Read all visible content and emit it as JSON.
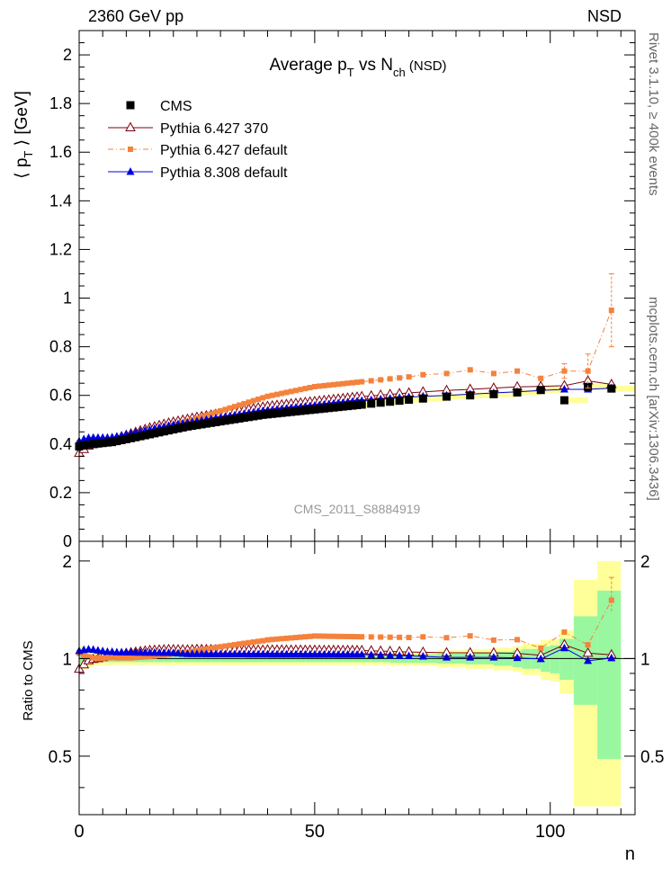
{
  "header": {
    "left": "2360 GeV pp",
    "right": "NSD"
  },
  "side_text": {
    "rivet": "Rivet 3.1.10, ≥ 400k events",
    "mcplots": "mcplots.cern.ch [arXiv:1306.3436]"
  },
  "colors": {
    "cms": "#000000",
    "pythia6_370": "#7a0010",
    "pythia6_default": "#f4823c",
    "pythia8_default": "#0000dd",
    "band_inner": "#99f7a0",
    "band_outer": "#ffff99"
  },
  "chart_data": [
    {
      "type": "scatter",
      "title": "Average p_T vs N_ch (NSD)",
      "title_parts": {
        "main": "Average p",
        "sub1": "T",
        "mid": " vs N",
        "sub2": "ch",
        "tail": " (NSD)"
      },
      "ylabel": "⟨ p_T ⟩ [GeV]",
      "ylabel_parts": {
        "open": "⟨ p",
        "sub": "T",
        "close": " ⟩ [GeV]"
      },
      "xlim": [
        0,
        118
      ],
      "ylim": [
        0,
        2.1
      ],
      "y_ticks": [
        0,
        0.2,
        0.4,
        0.6,
        0.8,
        1,
        1.2,
        1.4,
        1.6,
        1.8,
        2
      ],
      "y_tick_labels": [
        "0",
        "0.2",
        "0.4",
        "0.6",
        "0.8",
        "1",
        "1.2",
        "1.4",
        "1.6",
        "1.8",
        "2"
      ],
      "watermark": "CMS_2011_S8884919",
      "legend_position": "top-left",
      "series": [
        {
          "name": "CMS",
          "marker": "square",
          "x": [
            0,
            1,
            2,
            3,
            4,
            5,
            6,
            7,
            8,
            9,
            10,
            11,
            12,
            13,
            14,
            15,
            16,
            17,
            18,
            19,
            20,
            21,
            22,
            23,
            24,
            25,
            26,
            27,
            28,
            29,
            30,
            31,
            32,
            33,
            34,
            35,
            36,
            37,
            38,
            39,
            40,
            41,
            42,
            43,
            44,
            45,
            46,
            47,
            48,
            49,
            50,
            51,
            52,
            53,
            54,
            55,
            56,
            57,
            58,
            59,
            60,
            62,
            64,
            66,
            68,
            70,
            73,
            78,
            83,
            88,
            93,
            98,
            103,
            108,
            113
          ],
          "y": [
            0.39,
            0.395,
            0.398,
            0.4,
            0.402,
            0.404,
            0.406,
            0.408,
            0.412,
            0.416,
            0.42,
            0.424,
            0.428,
            0.432,
            0.436,
            0.44,
            0.444,
            0.448,
            0.452,
            0.456,
            0.46,
            0.464,
            0.468,
            0.472,
            0.475,
            0.478,
            0.481,
            0.484,
            0.487,
            0.49,
            0.493,
            0.496,
            0.499,
            0.502,
            0.505,
            0.508,
            0.511,
            0.514,
            0.517,
            0.52,
            0.522,
            0.524,
            0.526,
            0.528,
            0.53,
            0.532,
            0.534,
            0.536,
            0.538,
            0.54,
            0.542,
            0.544,
            0.546,
            0.548,
            0.55,
            0.552,
            0.554,
            0.556,
            0.558,
            0.56,
            0.562,
            0.566,
            0.57,
            0.574,
            0.578,
            0.582,
            0.587,
            0.595,
            0.6,
            0.605,
            0.612,
            0.622,
            0.58,
            0.635,
            0.628
          ]
        },
        {
          "name": "Pythia 6.427 370",
          "marker": "triangle-open",
          "x": [
            0,
            1,
            2,
            3,
            4,
            5,
            6,
            7,
            8,
            9,
            10,
            11,
            12,
            13,
            14,
            15,
            16,
            17,
            18,
            19,
            20,
            21,
            22,
            23,
            24,
            25,
            26,
            27,
            28,
            29,
            30,
            31,
            32,
            33,
            34,
            35,
            36,
            37,
            38,
            39,
            40,
            41,
            42,
            43,
            44,
            45,
            46,
            47,
            48,
            49,
            50,
            51,
            52,
            53,
            54,
            55,
            56,
            57,
            58,
            59,
            60,
            62,
            64,
            66,
            68,
            70,
            73,
            78,
            83,
            88,
            93,
            98,
            103,
            108,
            113
          ],
          "y": [
            0.362,
            0.378,
            0.392,
            0.398,
            0.402,
            0.407,
            0.412,
            0.418,
            0.424,
            0.43,
            0.436,
            0.442,
            0.448,
            0.454,
            0.46,
            0.466,
            0.471,
            0.476,
            0.481,
            0.486,
            0.49,
            0.494,
            0.498,
            0.502,
            0.506,
            0.51,
            0.513,
            0.516,
            0.519,
            0.522,
            0.525,
            0.528,
            0.531,
            0.534,
            0.537,
            0.54,
            0.543,
            0.546,
            0.549,
            0.552,
            0.555,
            0.557,
            0.559,
            0.561,
            0.563,
            0.565,
            0.567,
            0.569,
            0.571,
            0.573,
            0.575,
            0.577,
            0.579,
            0.581,
            0.583,
            0.585,
            0.587,
            0.589,
            0.591,
            0.593,
            0.595,
            0.598,
            0.601,
            0.604,
            0.607,
            0.61,
            0.614,
            0.62,
            0.625,
            0.63,
            0.635,
            0.637,
            0.64,
            0.66,
            0.645
          ]
        },
        {
          "name": "Pythia 6.427 default",
          "marker": "square-small",
          "x": [
            0,
            1,
            2,
            3,
            4,
            5,
            6,
            7,
            8,
            9,
            10,
            11,
            12,
            13,
            14,
            15,
            16,
            17,
            18,
            19,
            20,
            21,
            22,
            23,
            24,
            25,
            26,
            27,
            28,
            29,
            30,
            31,
            32,
            33,
            34,
            35,
            36,
            37,
            38,
            39,
            40,
            41,
            42,
            43,
            44,
            45,
            46,
            47,
            48,
            49,
            50,
            51,
            52,
            53,
            54,
            55,
            56,
            57,
            58,
            59,
            60,
            62,
            64,
            66,
            68,
            70,
            73,
            78,
            83,
            88,
            93,
            98,
            103,
            108,
            113
          ],
          "y": [
            0.405,
            0.405,
            0.403,
            0.402,
            0.403,
            0.405,
            0.408,
            0.411,
            0.414,
            0.418,
            0.422,
            0.426,
            0.431,
            0.436,
            0.441,
            0.446,
            0.452,
            0.458,
            0.464,
            0.47,
            0.476,
            0.482,
            0.488,
            0.494,
            0.5,
            0.506,
            0.512,
            0.518,
            0.524,
            0.53,
            0.536,
            0.542,
            0.548,
            0.554,
            0.56,
            0.566,
            0.572,
            0.578,
            0.584,
            0.59,
            0.596,
            0.6,
            0.604,
            0.608,
            0.612,
            0.616,
            0.62,
            0.624,
            0.628,
            0.632,
            0.636,
            0.638,
            0.64,
            0.642,
            0.644,
            0.646,
            0.648,
            0.65,
            0.652,
            0.654,
            0.656,
            0.66,
            0.664,
            0.668,
            0.672,
            0.676,
            0.685,
            0.69,
            0.705,
            0.69,
            0.7,
            0.67,
            0.7,
            0.7,
            0.95
          ]
        },
        {
          "name": "Pythia 8.308 default",
          "marker": "triangle-filled",
          "x": [
            0,
            1,
            2,
            3,
            4,
            5,
            6,
            7,
            8,
            9,
            10,
            11,
            12,
            13,
            14,
            15,
            16,
            17,
            18,
            19,
            20,
            21,
            22,
            23,
            24,
            25,
            26,
            27,
            28,
            29,
            30,
            31,
            32,
            33,
            34,
            35,
            36,
            37,
            38,
            39,
            40,
            41,
            42,
            43,
            44,
            45,
            46,
            47,
            48,
            49,
            50,
            51,
            52,
            53,
            54,
            55,
            56,
            57,
            58,
            59,
            60,
            62,
            64,
            66,
            68,
            70,
            73,
            78,
            83,
            88,
            93,
            98,
            103,
            108,
            113
          ],
          "y": [
            0.412,
            0.42,
            0.425,
            0.426,
            0.426,
            0.426,
            0.426,
            0.428,
            0.431,
            0.435,
            0.439,
            0.443,
            0.447,
            0.451,
            0.455,
            0.459,
            0.463,
            0.467,
            0.471,
            0.475,
            0.479,
            0.482,
            0.485,
            0.488,
            0.491,
            0.494,
            0.497,
            0.5,
            0.503,
            0.506,
            0.509,
            0.512,
            0.515,
            0.518,
            0.521,
            0.524,
            0.527,
            0.53,
            0.533,
            0.536,
            0.538,
            0.54,
            0.542,
            0.544,
            0.546,
            0.548,
            0.55,
            0.552,
            0.554,
            0.556,
            0.558,
            0.56,
            0.562,
            0.564,
            0.566,
            0.568,
            0.57,
            0.572,
            0.574,
            0.576,
            0.578,
            0.581,
            0.584,
            0.587,
            0.59,
            0.593,
            0.596,
            0.6,
            0.605,
            0.61,
            0.615,
            0.62,
            0.625,
            0.625,
            0.63
          ]
        }
      ]
    },
    {
      "type": "scatter",
      "ylabel": "Ratio to CMS",
      "xlabel": "n",
      "xlim": [
        0,
        118
      ],
      "ylim": [
        0.33,
        2.3
      ],
      "scale": "log",
      "x_ticks": [
        0,
        50,
        100
      ],
      "x_tick_labels": [
        "0",
        "50",
        "100"
      ],
      "y_ticks": [
        0.5,
        1,
        2
      ],
      "y_tick_labels": [
        "0.5",
        "1",
        "2"
      ],
      "bands": {
        "x_edges": [
          0,
          1,
          2,
          3,
          4,
          5,
          6,
          7,
          8,
          9,
          10,
          12,
          14,
          16,
          18,
          20,
          22,
          24,
          26,
          28,
          30,
          32,
          34,
          36,
          38,
          40,
          42,
          44,
          46,
          48,
          50,
          52,
          54,
          56,
          58,
          60,
          62,
          64,
          66,
          68,
          70,
          72,
          74,
          76,
          78,
          80,
          82,
          84,
          86,
          88,
          90,
          92,
          94,
          96,
          98,
          100,
          102,
          105,
          110,
          115
        ],
        "inner_lo": [
          0.95,
          0.96,
          0.97,
          0.975,
          0.975,
          0.975,
          0.975,
          0.975,
          0.975,
          0.975,
          0.975,
          0.975,
          0.975,
          0.975,
          0.975,
          0.975,
          0.975,
          0.975,
          0.975,
          0.975,
          0.975,
          0.975,
          0.975,
          0.975,
          0.975,
          0.975,
          0.975,
          0.975,
          0.975,
          0.975,
          0.975,
          0.975,
          0.975,
          0.975,
          0.975,
          0.975,
          0.975,
          0.975,
          0.97,
          0.97,
          0.97,
          0.97,
          0.97,
          0.965,
          0.965,
          0.965,
          0.96,
          0.96,
          0.96,
          0.95,
          0.95,
          0.94,
          0.93,
          0.93,
          0.91,
          0.9,
          0.86,
          0.72,
          0.49
        ],
        "inner_hi": [
          1.05,
          1.04,
          1.03,
          1.025,
          1.025,
          1.025,
          1.025,
          1.025,
          1.025,
          1.025,
          1.025,
          1.025,
          1.025,
          1.025,
          1.025,
          1.025,
          1.025,
          1.025,
          1.025,
          1.025,
          1.025,
          1.025,
          1.025,
          1.025,
          1.025,
          1.025,
          1.025,
          1.025,
          1.025,
          1.025,
          1.025,
          1.025,
          1.025,
          1.025,
          1.025,
          1.025,
          1.025,
          1.025,
          1.03,
          1.03,
          1.03,
          1.03,
          1.03,
          1.035,
          1.035,
          1.035,
          1.04,
          1.04,
          1.04,
          1.05,
          1.05,
          1.06,
          1.07,
          1.07,
          1.09,
          1.1,
          1.15,
          1.35,
          1.62
        ],
        "outer_lo": [
          0.91,
          0.93,
          0.94,
          0.95,
          0.955,
          0.955,
          0.955,
          0.955,
          0.955,
          0.955,
          0.955,
          0.955,
          0.955,
          0.955,
          0.955,
          0.955,
          0.955,
          0.955,
          0.955,
          0.955,
          0.955,
          0.955,
          0.955,
          0.955,
          0.955,
          0.955,
          0.955,
          0.955,
          0.955,
          0.955,
          0.955,
          0.955,
          0.955,
          0.955,
          0.955,
          0.955,
          0.955,
          0.955,
          0.95,
          0.95,
          0.95,
          0.95,
          0.95,
          0.94,
          0.94,
          0.94,
          0.93,
          0.93,
          0.93,
          0.92,
          0.92,
          0.91,
          0.89,
          0.89,
          0.86,
          0.85,
          0.78,
          0.35,
          0.35
        ],
        "outer_hi": [
          1.09,
          1.07,
          1.06,
          1.05,
          1.045,
          1.045,
          1.045,
          1.045,
          1.045,
          1.045,
          1.045,
          1.045,
          1.045,
          1.045,
          1.045,
          1.045,
          1.045,
          1.045,
          1.045,
          1.045,
          1.045,
          1.045,
          1.045,
          1.045,
          1.045,
          1.045,
          1.045,
          1.045,
          1.045,
          1.045,
          1.045,
          1.045,
          1.045,
          1.045,
          1.045,
          1.045,
          1.045,
          1.045,
          1.05,
          1.05,
          1.05,
          1.05,
          1.05,
          1.06,
          1.06,
          1.06,
          1.07,
          1.07,
          1.07,
          1.08,
          1.08,
          1.09,
          1.11,
          1.11,
          1.14,
          1.15,
          1.22,
          1.75,
          2.0
        ]
      }
    }
  ]
}
